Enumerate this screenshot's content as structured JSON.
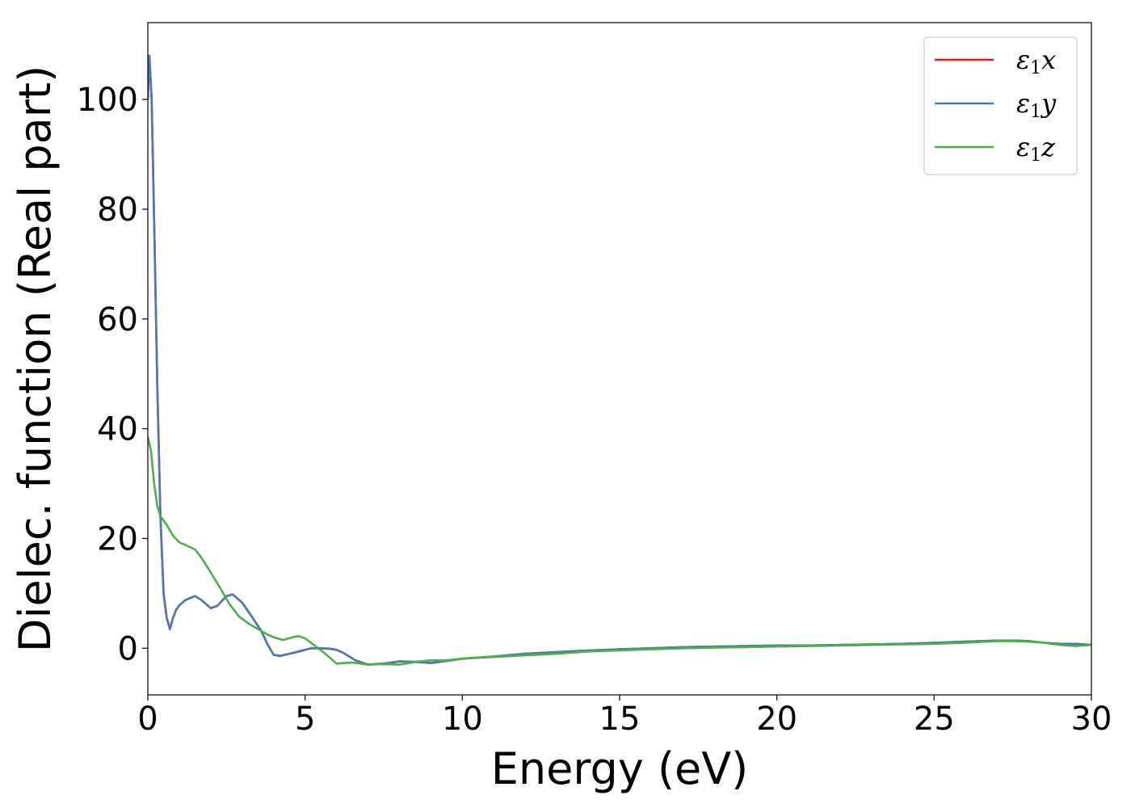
{
  "chart_data": {
    "type": "line",
    "title": "",
    "xlabel": "Energy (eV)",
    "ylabel": "Dielec. function (Real part)",
    "xlim": [
      0,
      30
    ],
    "ylim": [
      -8.5,
      114
    ],
    "xticks": [
      0,
      5,
      10,
      15,
      20,
      25,
      30
    ],
    "yticks": [
      0,
      20,
      40,
      60,
      80,
      100
    ],
    "xtick_labels": [
      "0",
      "5",
      "10",
      "15",
      "20",
      "25",
      "30"
    ],
    "ytick_labels": [
      "0",
      "20",
      "40",
      "60",
      "80",
      "100"
    ],
    "grid": false,
    "legend_position": "top-right",
    "series": [
      {
        "name": "ε1x",
        "legend_main": "ε",
        "legend_sub": "1",
        "legend_var": "x",
        "color": "#e41a1c",
        "x": [
          0,
          0.05,
          0.12,
          0.2,
          0.3,
          0.4,
          0.5,
          0.6,
          0.7,
          0.8,
          0.9,
          1.0,
          1.2,
          1.5,
          1.7,
          2.0,
          2.2,
          2.5,
          2.7,
          3.0,
          3.3,
          3.6,
          3.8,
          4.0,
          4.2,
          4.5,
          4.8,
          5.2,
          5.5,
          5.8,
          6.0,
          6.2,
          6.6,
          7.0,
          7.5,
          8.0,
          8.5,
          9.0,
          9.5,
          10,
          11,
          12,
          13,
          14,
          15,
          16,
          17,
          18,
          19,
          20,
          21,
          22,
          23,
          24,
          25,
          26,
          27,
          27.5,
          28,
          28.5,
          29,
          29.5,
          30
        ],
        "y": [
          100,
          108,
          100,
          78,
          48,
          24,
          10,
          5.5,
          3.5,
          5.5,
          7,
          7.8,
          8.8,
          9.5,
          8.8,
          7.3,
          7.7,
          9.5,
          9.8,
          8.3,
          5.8,
          3.2,
          0.8,
          -1.2,
          -1.4,
          -1.0,
          -0.6,
          0,
          0,
          -0.1,
          -0.3,
          -0.8,
          -2.2,
          -3.0,
          -2.8,
          -2.4,
          -2.5,
          -2.7,
          -2.3,
          -1.9,
          -1.5,
          -1.0,
          -0.7,
          -0.4,
          -0.2,
          0,
          0.2,
          0.3,
          0.4,
          0.5,
          0.5,
          0.6,
          0.7,
          0.8,
          1.0,
          1.2,
          1.4,
          1.4,
          1.3,
          1.0,
          0.8,
          0.8,
          0.6
        ]
      },
      {
        "name": "ε1y",
        "legend_main": "ε",
        "legend_sub": "1",
        "legend_var": "y",
        "color": "#4a79b4",
        "x": [
          0,
          0.05,
          0.12,
          0.2,
          0.3,
          0.4,
          0.5,
          0.6,
          0.7,
          0.8,
          0.9,
          1.0,
          1.2,
          1.5,
          1.7,
          2.0,
          2.2,
          2.5,
          2.7,
          3.0,
          3.3,
          3.6,
          3.8,
          4.0,
          4.2,
          4.5,
          4.8,
          5.2,
          5.5,
          5.8,
          6.0,
          6.2,
          6.6,
          7.0,
          7.5,
          8.0,
          8.5,
          9.0,
          9.5,
          10,
          11,
          12,
          13,
          14,
          15,
          16,
          17,
          18,
          19,
          20,
          21,
          22,
          23,
          24,
          25,
          26,
          27,
          27.5,
          28,
          28.5,
          29,
          29.5,
          30
        ],
        "y": [
          100,
          108,
          100,
          78,
          48,
          24,
          10,
          5.5,
          3.5,
          5.5,
          7,
          7.8,
          8.8,
          9.5,
          8.8,
          7.3,
          7.7,
          9.5,
          9.8,
          8.3,
          5.8,
          3.2,
          0.8,
          -1.2,
          -1.4,
          -1.0,
          -0.6,
          0,
          0,
          -0.1,
          -0.3,
          -0.8,
          -2.2,
          -3.0,
          -2.8,
          -2.4,
          -2.5,
          -2.7,
          -2.3,
          -1.9,
          -1.5,
          -1.0,
          -0.7,
          -0.4,
          -0.2,
          0,
          0.2,
          0.3,
          0.4,
          0.5,
          0.5,
          0.6,
          0.7,
          0.8,
          1.0,
          1.2,
          1.4,
          1.4,
          1.3,
          1.0,
          0.8,
          0.8,
          0.6
        ]
      },
      {
        "name": "ε1z",
        "legend_main": "ε",
        "legend_sub": "1",
        "legend_var": "z",
        "color": "#4daf4a",
        "x": [
          0,
          0.1,
          0.2,
          0.3,
          0.4,
          0.6,
          0.8,
          1.0,
          1.2,
          1.5,
          1.7,
          2.0,
          2.3,
          2.6,
          2.9,
          3.2,
          3.5,
          3.8,
          4.0,
          4.3,
          4.6,
          4.8,
          5.0,
          5.3,
          5.6,
          6.0,
          6.5,
          7.0,
          7.5,
          8.0,
          8.5,
          9.0,
          9.5,
          10,
          11,
          12,
          13,
          14,
          15,
          16,
          17,
          18,
          19,
          20,
          21,
          22,
          23,
          24,
          25,
          26,
          27,
          27.5,
          28,
          28.5,
          29,
          29.5,
          30
        ],
        "y": [
          38.5,
          36,
          30,
          26,
          24,
          22.5,
          20.5,
          19.3,
          18.8,
          18,
          16.5,
          13.8,
          11,
          8,
          5.8,
          4.5,
          3.5,
          2.5,
          2.0,
          1.5,
          2.0,
          2.2,
          1.8,
          0.5,
          -0.8,
          -2.8,
          -2.6,
          -3.0,
          -2.9,
          -3.0,
          -2.5,
          -2.2,
          -2.2,
          -1.9,
          -1.6,
          -1.3,
          -1.0,
          -0.6,
          -0.4,
          -0.2,
          0,
          0.1,
          0.2,
          0.3,
          0.4,
          0.5,
          0.6,
          0.7,
          0.8,
          1.0,
          1.3,
          1.3,
          1.2,
          1.0,
          0.6,
          0.4,
          0.6
        ]
      }
    ]
  }
}
